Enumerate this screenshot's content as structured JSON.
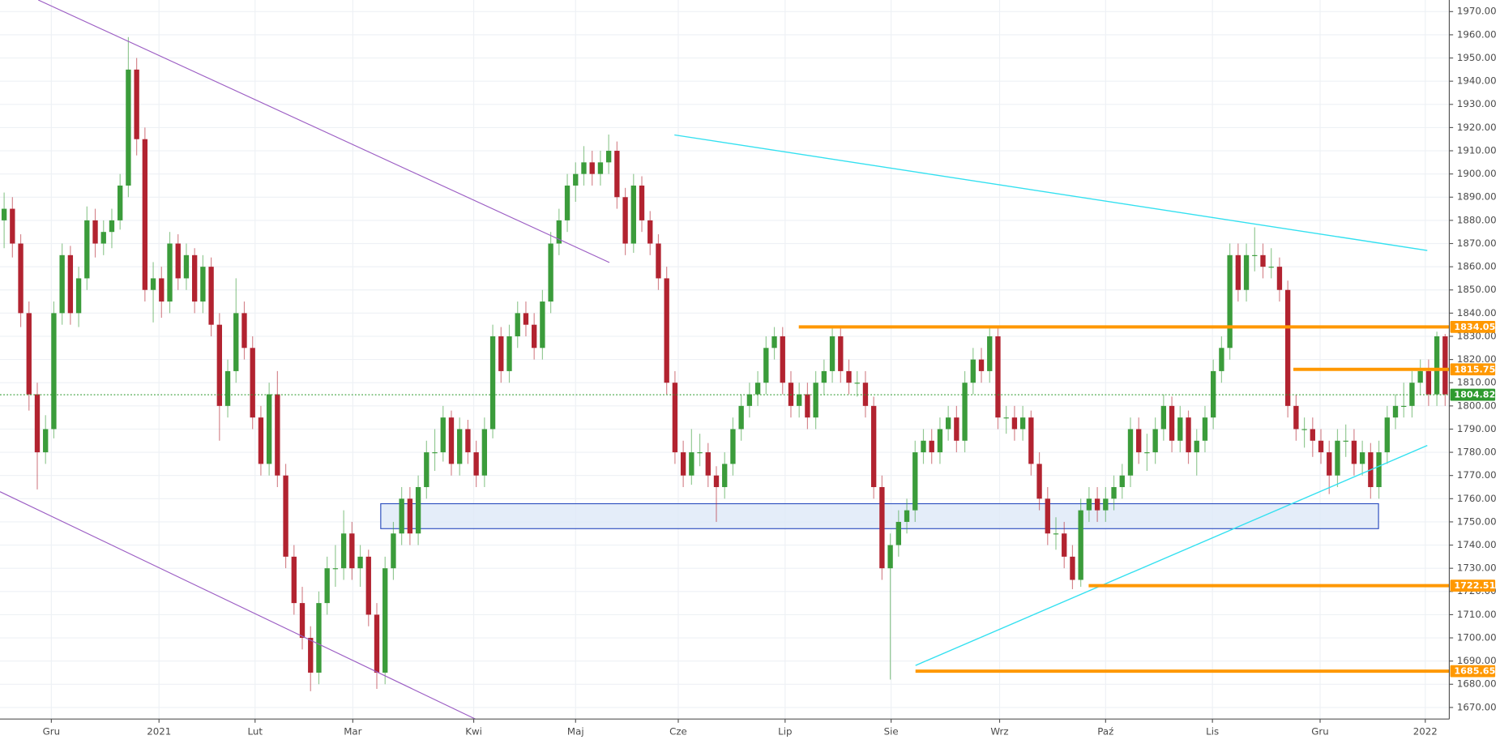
{
  "chart_data": {
    "type": "candlestick",
    "up_color": "#3b9c3b",
    "down_color": "#b22330",
    "xlim": [
      -0.5,
      174.5
    ],
    "xticks": [
      {
        "value": 5.7,
        "label": "Gru"
      },
      {
        "value": 18.7,
        "label": "2021"
      },
      {
        "value": 30.3,
        "label": "Lut"
      },
      {
        "value": 42.1,
        "label": "Mar"
      },
      {
        "value": 56.7,
        "label": "Kwi"
      },
      {
        "value": 69.0,
        "label": "Maj"
      },
      {
        "value": 81.4,
        "label": "Cze"
      },
      {
        "value": 94.3,
        "label": "Lip"
      },
      {
        "value": 107.1,
        "label": "Sie"
      },
      {
        "value": 120.2,
        "label": "Wrz"
      },
      {
        "value": 133.0,
        "label": "Paź"
      },
      {
        "value": 145.9,
        "label": "Lis"
      },
      {
        "value": 158.9,
        "label": "Gru"
      },
      {
        "value": 171.6,
        "label": "2022"
      }
    ],
    "ylim": [
      1665,
      1975
    ],
    "yticks": [
      {
        "value": 1670,
        "label": "1670.00"
      },
      {
        "value": 1680,
        "label": "1680.00"
      },
      {
        "value": 1690,
        "label": "1690.00"
      },
      {
        "value": 1700,
        "label": "1700.00"
      },
      {
        "value": 1710,
        "label": "1710.00"
      },
      {
        "value": 1720,
        "label": "1720.00"
      },
      {
        "value": 1730,
        "label": "1730.00"
      },
      {
        "value": 1740,
        "label": "1740.00"
      },
      {
        "value": 1750,
        "label": "1750.00"
      },
      {
        "value": 1760,
        "label": "1760.00"
      },
      {
        "value": 1770,
        "label": "1770.00"
      },
      {
        "value": 1780,
        "label": "1780.00"
      },
      {
        "value": 1790,
        "label": "1790.00"
      },
      {
        "value": 1800,
        "label": "1800.00"
      },
      {
        "value": 1810,
        "label": "1810.00"
      },
      {
        "value": 1820,
        "label": "1820.00"
      },
      {
        "value": 1830,
        "label": "1830.00"
      },
      {
        "value": 1840,
        "label": "1840.00"
      },
      {
        "value": 1850,
        "label": "1850.00"
      },
      {
        "value": 1860,
        "label": "1860.00"
      },
      {
        "value": 1870,
        "label": "1870.00"
      },
      {
        "value": 1880,
        "label": "1880.00"
      },
      {
        "value": 1890,
        "label": "1890.00"
      },
      {
        "value": 1900,
        "label": "1900.00"
      },
      {
        "value": 1910,
        "label": "1910.00"
      },
      {
        "value": 1920,
        "label": "1920.00"
      },
      {
        "value": 1930,
        "label": "1930.00"
      },
      {
        "value": 1940,
        "label": "1940.00"
      },
      {
        "value": 1950,
        "label": "1950.00"
      },
      {
        "value": 1960,
        "label": "1960.00"
      },
      {
        "value": 1970,
        "label": "1970.00"
      }
    ],
    "grid": true,
    "price_levels": [
      {
        "value": 1834.05,
        "color": "#ff9800"
      },
      {
        "value": 1815.75,
        "color": "#ff9800"
      },
      {
        "value": 1722.51,
        "color": "#ff9800"
      },
      {
        "value": 1685.65,
        "color": "#ff9800"
      }
    ],
    "current_price": {
      "value": 1804.82,
      "color": "#2e9a2e"
    },
    "candles": [
      [
        1880,
        1892,
        1868,
        1885
      ],
      [
        1885,
        1890,
        1864,
        1870
      ],
      [
        1870,
        1874,
        1834,
        1840
      ],
      [
        1840,
        1845,
        1798,
        1805
      ],
      [
        1805,
        1810,
        1764,
        1780
      ],
      [
        1780,
        1796,
        1775,
        1790
      ],
      [
        1790,
        1845,
        1786,
        1840
      ],
      [
        1840,
        1870,
        1835,
        1865
      ],
      [
        1865,
        1869,
        1835,
        1840
      ],
      [
        1840,
        1860,
        1834,
        1855
      ],
      [
        1855,
        1886,
        1850,
        1880
      ],
      [
        1880,
        1885,
        1864,
        1870
      ],
      [
        1870,
        1880,
        1865,
        1875
      ],
      [
        1875,
        1885,
        1868,
        1880
      ],
      [
        1880,
        1900,
        1876,
        1895
      ],
      [
        1895,
        1959,
        1890,
        1945
      ],
      [
        1945,
        1950,
        1908,
        1915
      ],
      [
        1915,
        1920,
        1845,
        1850
      ],
      [
        1850,
        1862,
        1836,
        1855
      ],
      [
        1855,
        1860,
        1838,
        1845
      ],
      [
        1845,
        1875,
        1840,
        1870
      ],
      [
        1870,
        1874,
        1850,
        1855
      ],
      [
        1855,
        1870,
        1850,
        1865
      ],
      [
        1865,
        1868,
        1840,
        1845
      ],
      [
        1845,
        1865,
        1840,
        1860
      ],
      [
        1860,
        1864,
        1830,
        1835
      ],
      [
        1835,
        1840,
        1785,
        1800
      ],
      [
        1800,
        1820,
        1795,
        1815
      ],
      [
        1815,
        1855,
        1810,
        1840
      ],
      [
        1840,
        1845,
        1820,
        1825
      ],
      [
        1825,
        1830,
        1790,
        1795
      ],
      [
        1795,
        1800,
        1770,
        1775
      ],
      [
        1775,
        1810,
        1770,
        1805
      ],
      [
        1805,
        1815,
        1765,
        1770
      ],
      [
        1770,
        1775,
        1730,
        1735
      ],
      [
        1735,
        1740,
        1710,
        1715
      ],
      [
        1715,
        1722,
        1695,
        1700
      ],
      [
        1700,
        1705,
        1677,
        1685
      ],
      [
        1685,
        1720,
        1680,
        1715
      ],
      [
        1715,
        1735,
        1710,
        1730
      ],
      [
        1730,
        1740,
        1722,
        1730
      ],
      [
        1730,
        1755,
        1725,
        1745
      ],
      [
        1745,
        1750,
        1725,
        1730
      ],
      [
        1730,
        1740,
        1722,
        1735
      ],
      [
        1735,
        1738,
        1705,
        1710
      ],
      [
        1710,
        1715,
        1678,
        1685
      ],
      [
        1685,
        1735,
        1680,
        1730
      ],
      [
        1730,
        1750,
        1725,
        1745
      ],
      [
        1745,
        1765,
        1740,
        1760
      ],
      [
        1760,
        1765,
        1740,
        1745
      ],
      [
        1745,
        1770,
        1740,
        1765
      ],
      [
        1765,
        1785,
        1760,
        1780
      ],
      [
        1780,
        1790,
        1772,
        1780
      ],
      [
        1780,
        1800,
        1776,
        1795
      ],
      [
        1795,
        1798,
        1770,
        1775
      ],
      [
        1775,
        1795,
        1770,
        1790
      ],
      [
        1790,
        1794,
        1775,
        1780
      ],
      [
        1780,
        1785,
        1765,
        1770
      ],
      [
        1770,
        1795,
        1765,
        1790
      ],
      [
        1790,
        1835,
        1786,
        1830
      ],
      [
        1830,
        1834,
        1810,
        1815
      ],
      [
        1815,
        1835,
        1810,
        1830
      ],
      [
        1830,
        1845,
        1825,
        1840
      ],
      [
        1840,
        1845,
        1830,
        1835
      ],
      [
        1835,
        1840,
        1820,
        1825
      ],
      [
        1825,
        1850,
        1820,
        1845
      ],
      [
        1845,
        1875,
        1840,
        1870
      ],
      [
        1870,
        1885,
        1865,
        1880
      ],
      [
        1880,
        1900,
        1875,
        1895
      ],
      [
        1895,
        1905,
        1888,
        1900
      ],
      [
        1900,
        1912,
        1895,
        1905
      ],
      [
        1905,
        1910,
        1895,
        1900
      ],
      [
        1900,
        1910,
        1895,
        1905
      ],
      [
        1905,
        1917,
        1900,
        1910
      ],
      [
        1910,
        1914,
        1885,
        1890
      ],
      [
        1890,
        1894,
        1865,
        1870
      ],
      [
        1870,
        1900,
        1866,
        1895
      ],
      [
        1895,
        1899,
        1875,
        1880
      ],
      [
        1880,
        1884,
        1865,
        1870
      ],
      [
        1870,
        1874,
        1850,
        1855
      ],
      [
        1855,
        1860,
        1805,
        1810
      ],
      [
        1810,
        1815,
        1775,
        1780
      ],
      [
        1780,
        1785,
        1765,
        1770
      ],
      [
        1770,
        1790,
        1766,
        1780
      ],
      [
        1780,
        1788,
        1774,
        1780
      ],
      [
        1780,
        1784,
        1765,
        1770
      ],
      [
        1770,
        1774,
        1750,
        1765
      ],
      [
        1765,
        1780,
        1760,
        1775
      ],
      [
        1775,
        1795,
        1770,
        1790
      ],
      [
        1790,
        1805,
        1785,
        1800
      ],
      [
        1800,
        1810,
        1795,
        1805
      ],
      [
        1805,
        1815,
        1800,
        1810
      ],
      [
        1810,
        1830,
        1805,
        1825
      ],
      [
        1825,
        1834,
        1820,
        1830
      ],
      [
        1830,
        1834,
        1805,
        1810
      ],
      [
        1810,
        1815,
        1795,
        1800
      ],
      [
        1800,
        1810,
        1795,
        1805
      ],
      [
        1805,
        1810,
        1790,
        1795
      ],
      [
        1795,
        1815,
        1790,
        1810
      ],
      [
        1810,
        1820,
        1805,
        1815
      ],
      [
        1815,
        1834,
        1810,
        1830
      ],
      [
        1830,
        1834,
        1810,
        1815
      ],
      [
        1815,
        1820,
        1805,
        1810
      ],
      [
        1810,
        1815,
        1804,
        1810
      ],
      [
        1810,
        1815,
        1795,
        1800
      ],
      [
        1800,
        1804,
        1760,
        1765
      ],
      [
        1765,
        1770,
        1725,
        1730
      ],
      [
        1730,
        1745,
        1682,
        1740
      ],
      [
        1740,
        1755,
        1735,
        1750
      ],
      [
        1750,
        1760,
        1745,
        1755
      ],
      [
        1755,
        1785,
        1750,
        1780
      ],
      [
        1780,
        1790,
        1775,
        1785
      ],
      [
        1785,
        1790,
        1775,
        1780
      ],
      [
        1780,
        1795,
        1775,
        1790
      ],
      [
        1790,
        1800,
        1785,
        1795
      ],
      [
        1795,
        1800,
        1780,
        1785
      ],
      [
        1785,
        1815,
        1780,
        1810
      ],
      [
        1810,
        1825,
        1805,
        1820
      ],
      [
        1820,
        1825,
        1810,
        1815
      ],
      [
        1815,
        1834,
        1810,
        1830
      ],
      [
        1830,
        1834,
        1790,
        1795
      ],
      [
        1795,
        1800,
        1788,
        1795
      ],
      [
        1795,
        1800,
        1785,
        1790
      ],
      [
        1790,
        1800,
        1785,
        1795
      ],
      [
        1795,
        1798,
        1770,
        1775
      ],
      [
        1775,
        1780,
        1755,
        1760
      ],
      [
        1760,
        1765,
        1740,
        1745
      ],
      [
        1745,
        1752,
        1738,
        1745
      ],
      [
        1745,
        1750,
        1730,
        1735
      ],
      [
        1735,
        1740,
        1721,
        1725
      ],
      [
        1725,
        1760,
        1722,
        1755
      ],
      [
        1755,
        1765,
        1750,
        1760
      ],
      [
        1760,
        1765,
        1750,
        1755
      ],
      [
        1755,
        1765,
        1750,
        1760
      ],
      [
        1760,
        1770,
        1755,
        1765
      ],
      [
        1765,
        1775,
        1760,
        1770
      ],
      [
        1770,
        1795,
        1765,
        1790
      ],
      [
        1790,
        1795,
        1775,
        1780
      ],
      [
        1780,
        1788,
        1772,
        1780
      ],
      [
        1780,
        1795,
        1775,
        1790
      ],
      [
        1790,
        1805,
        1785,
        1800
      ],
      [
        1800,
        1804,
        1780,
        1785
      ],
      [
        1785,
        1800,
        1780,
        1795
      ],
      [
        1795,
        1798,
        1775,
        1780
      ],
      [
        1780,
        1790,
        1770,
        1785
      ],
      [
        1785,
        1800,
        1780,
        1795
      ],
      [
        1795,
        1820,
        1790,
        1815
      ],
      [
        1815,
        1830,
        1810,
        1825
      ],
      [
        1825,
        1870,
        1820,
        1865
      ],
      [
        1865,
        1870,
        1845,
        1850
      ],
      [
        1850,
        1870,
        1845,
        1865
      ],
      [
        1865,
        1877,
        1858,
        1865
      ],
      [
        1865,
        1870,
        1855,
        1860
      ],
      [
        1860,
        1868,
        1855,
        1860
      ],
      [
        1860,
        1864,
        1845,
        1850
      ],
      [
        1850,
        1854,
        1795,
        1800
      ],
      [
        1800,
        1805,
        1785,
        1790
      ],
      [
        1790,
        1795,
        1782,
        1790
      ],
      [
        1790,
        1795,
        1778,
        1785
      ],
      [
        1785,
        1790,
        1775,
        1780
      ],
      [
        1780,
        1785,
        1762,
        1770
      ],
      [
        1770,
        1790,
        1765,
        1785
      ],
      [
        1785,
        1792,
        1778,
        1785
      ],
      [
        1785,
        1790,
        1770,
        1775
      ],
      [
        1775,
        1785,
        1770,
        1780
      ],
      [
        1780,
        1784,
        1760,
        1765
      ],
      [
        1765,
        1785,
        1760,
        1780
      ],
      [
        1780,
        1800,
        1775,
        1795
      ],
      [
        1795,
        1805,
        1790,
        1800
      ],
      [
        1800,
        1810,
        1795,
        1800
      ],
      [
        1800,
        1815,
        1795,
        1810
      ],
      [
        1810,
        1820,
        1805,
        1815
      ],
      [
        1815,
        1820,
        1800,
        1805
      ],
      [
        1805,
        1832,
        1800,
        1830
      ],
      [
        1830,
        1831,
        1800,
        1805
      ]
    ]
  }
}
